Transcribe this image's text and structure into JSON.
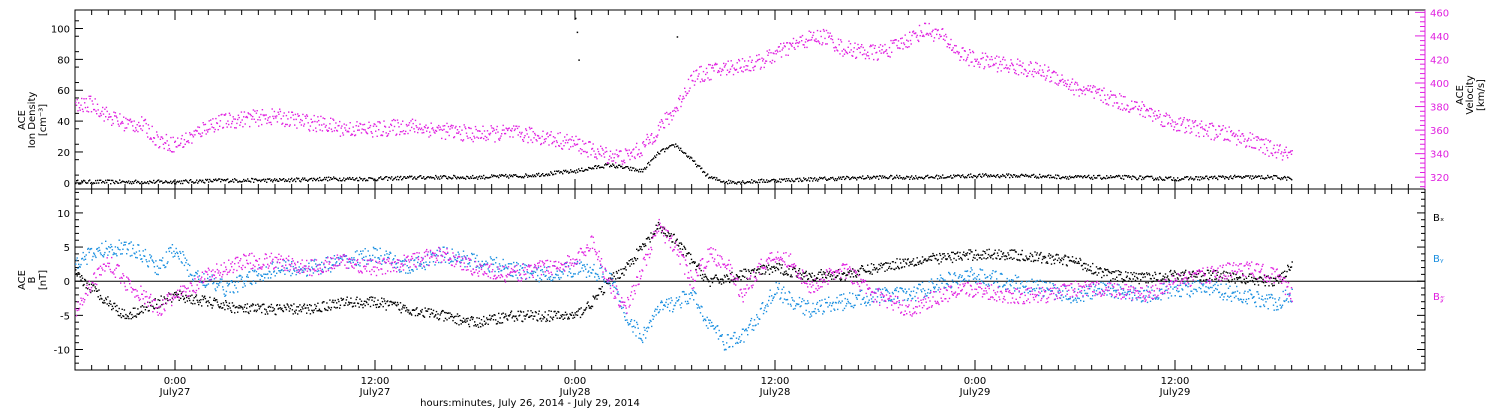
{
  "chart_data": [
    {
      "type": "scatter",
      "panel": "top",
      "ylabel_left": [
        "ACE",
        "Ion Density",
        "[cm⁻³]"
      ],
      "ylabel_right": [
        "ACE",
        "Velocity",
        "[km/s]"
      ],
      "ylim_left": [
        -4,
        112
      ],
      "yticks_left": [
        "0",
        "20",
        "40",
        "60",
        "80",
        "100"
      ],
      "yticks_left_values": [
        0,
        20,
        40,
        60,
        80,
        100
      ],
      "ylim_right": [
        310,
        462
      ],
      "yticks_right": [
        "320",
        "340",
        "360",
        "380",
        "400",
        "420",
        "440",
        "460"
      ],
      "yticks_right_values": [
        320,
        340,
        360,
        380,
        400,
        420,
        440,
        460
      ],
      "xlim_hours": [
        0,
        81
      ],
      "series": [
        {
          "axis": "left",
          "color": "#000000",
          "x_hours": [
            0,
            3,
            6,
            9,
            12,
            15,
            18,
            21,
            24,
            27,
            30,
            32,
            33,
            34,
            35,
            36,
            37,
            38,
            39,
            40,
            42,
            45,
            48,
            51,
            54,
            57,
            60,
            63,
            66,
            69,
            72,
            73
          ],
          "values": [
            1,
            1,
            1,
            2,
            2,
            3,
            3,
            4,
            4,
            5,
            8,
            12,
            10,
            8,
            20,
            25,
            15,
            4,
            1,
            1,
            2,
            3,
            4,
            4,
            5,
            5,
            4,
            4,
            3,
            4,
            4,
            3
          ]
        },
        {
          "axis": "right",
          "color": "#e020e0",
          "x_hours": [
            0,
            1,
            2,
            3,
            4,
            5,
            6,
            7,
            8,
            9,
            10,
            12,
            14,
            15,
            16,
            18,
            20,
            22,
            24,
            26,
            28,
            30,
            31,
            32,
            33,
            34,
            35,
            36,
            37,
            38,
            39,
            40,
            41,
            42,
            43,
            44,
            45,
            46,
            47,
            48,
            49,
            50,
            51,
            52,
            53,
            54,
            55,
            56,
            57,
            58,
            59,
            60,
            62,
            64,
            66,
            68,
            70,
            72,
            73
          ],
          "values": [
            380,
            383,
            372,
            366,
            365,
            352,
            348,
            355,
            365,
            368,
            370,
            372,
            367,
            365,
            362,
            361,
            364,
            360,
            357,
            358,
            355,
            349,
            343,
            339,
            338,
            345,
            362,
            378,
            405,
            410,
            413,
            416,
            418,
            425,
            432,
            438,
            440,
            430,
            428,
            426,
            430,
            438,
            446,
            440,
            426,
            420,
            418,
            415,
            413,
            410,
            405,
            396,
            388,
            378,
            366,
            360,
            354,
            343,
            338
          ]
        }
      ]
    },
    {
      "type": "scatter",
      "panel": "bottom",
      "ylabel": [
        "ACE",
        "B",
        "[nT]"
      ],
      "ylim": [
        -13,
        13.5
      ],
      "yticks": [
        "-10",
        "-5",
        "0",
        "5",
        "10"
      ],
      "yticks_values": [
        -10,
        -5,
        0,
        5,
        10
      ],
      "xlim_hours": [
        0,
        81
      ],
      "legend": [
        "Bₓ",
        "Bᵧ",
        "B𝓏"
      ],
      "series": [
        {
          "name": "Bₓ",
          "color": "#000000",
          "x_hours": [
            0,
            1,
            2,
            3,
            4,
            5,
            6,
            8,
            10,
            12,
            14,
            16,
            18,
            20,
            22,
            24,
            26,
            28,
            30,
            31,
            32,
            33,
            34,
            35,
            36,
            37,
            38,
            40,
            42,
            44,
            46,
            48,
            50,
            52,
            54,
            56,
            58,
            60,
            62,
            64,
            66,
            68,
            70,
            72,
            73
          ],
          "values": [
            1,
            -1,
            -3,
            -5,
            -4,
            -3,
            -2,
            -3,
            -4,
            -4,
            -4,
            -3,
            -3,
            -4,
            -5,
            -6,
            -5,
            -5,
            -5,
            -3,
            0,
            2,
            5,
            8,
            6,
            3,
            0,
            1,
            2,
            1,
            1,
            2,
            3,
            3.5,
            4,
            4,
            3.5,
            3,
            1,
            0.5,
            1,
            1,
            0.5,
            0,
            2.5
          ]
        },
        {
          "name": "Bᵧ",
          "color": "#1a8fe0",
          "x_hours": [
            0,
            1,
            2,
            3,
            4,
            5,
            6,
            7,
            8,
            9,
            10,
            12,
            14,
            16,
            18,
            20,
            22,
            24,
            26,
            28,
            30,
            32,
            33,
            34,
            35,
            36,
            37,
            38,
            39,
            40,
            41,
            42,
            43,
            44,
            46,
            48,
            50,
            52,
            54,
            56,
            58,
            60,
            62,
            64,
            66,
            68,
            70,
            72,
            73
          ],
          "values": [
            3,
            4,
            5,
            5,
            4,
            2,
            5,
            1,
            0,
            -1,
            0,
            2,
            2,
            3,
            4,
            2,
            4,
            3,
            2,
            1,
            2,
            1,
            -5,
            -8,
            -4,
            -3,
            -2,
            -6,
            -9,
            -8,
            -5,
            -1,
            -3,
            -4,
            -3,
            -2,
            -2,
            0,
            1,
            0,
            -1,
            -2,
            -1,
            -2,
            -1,
            -1,
            -2,
            -3,
            -2
          ]
        },
        {
          "name": "B𝓏",
          "color": "#e020e0",
          "x_hours": [
            0,
            1,
            2,
            3,
            4,
            5,
            6,
            7,
            8,
            9,
            10,
            12,
            14,
            16,
            18,
            20,
            22,
            24,
            26,
            28,
            30,
            31,
            32,
            33,
            34,
            35,
            36,
            37,
            38,
            39,
            40,
            41,
            42,
            43,
            44,
            46,
            48,
            50,
            52,
            54,
            56,
            58,
            60,
            62,
            64,
            66,
            68,
            70,
            72,
            73
          ],
          "values": [
            -4,
            0,
            3,
            0,
            -2,
            -4,
            -2,
            -1,
            1,
            2,
            3,
            3,
            2,
            3,
            2,
            3,
            4,
            2,
            1,
            2,
            3,
            6,
            0,
            -4,
            2,
            8,
            5,
            0,
            4,
            3,
            -2,
            2,
            4,
            3,
            -1,
            2,
            -2,
            -4,
            -2,
            -1,
            -2,
            -2,
            -1,
            -1,
            -2,
            0,
            1,
            2,
            1,
            -2
          ]
        }
      ]
    }
  ],
  "xaxis": {
    "ticks": [
      {
        "time": "0:00",
        "date": "July27",
        "hour": 6
      },
      {
        "time": "12:00",
        "date": "July27",
        "hour": 18
      },
      {
        "time": "0:00",
        "date": "July28",
        "hour": 30
      },
      {
        "time": "12:00",
        "date": "July28",
        "hour": 42
      },
      {
        "time": "0:00",
        "date": "July29",
        "hour": 54
      },
      {
        "time": "12:00",
        "date": "July29",
        "hour": 66
      }
    ],
    "label": "hours:minutes, July 26, 2014 - July 29, 2014"
  },
  "colors": {
    "black": "#000000",
    "magenta": "#e020e0",
    "blue": "#1a8fe0"
  }
}
